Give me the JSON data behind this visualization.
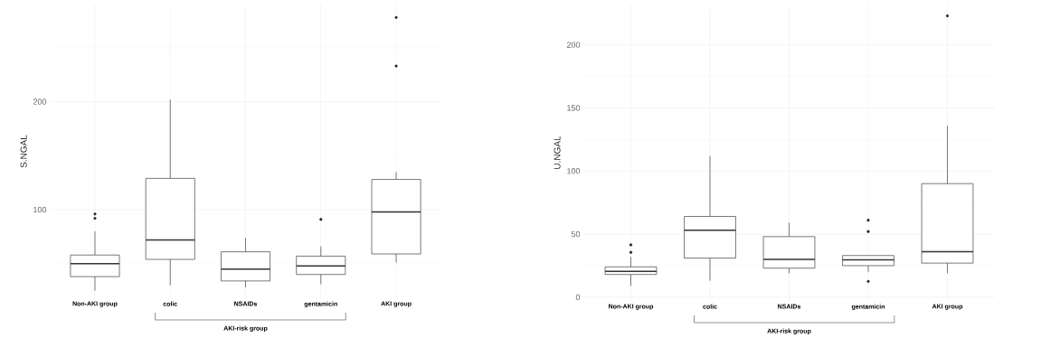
{
  "chart_data": [
    {
      "type": "box",
      "ylabel": "S.NGAL",
      "categories": [
        "Non-AKI group",
        "colic",
        "NSAIDs",
        "gentamicin",
        "AKI group"
      ],
      "boxes": [
        {
          "low": 25,
          "q1": 38,
          "median": 50,
          "q3": 58,
          "high": 80,
          "outliers": [
            92,
            96
          ]
        },
        {
          "low": 30,
          "q1": 54,
          "median": 72,
          "q3": 129,
          "high": 202
        },
        {
          "low": 28,
          "q1": 34,
          "median": 45,
          "q3": 61,
          "high": 74
        },
        {
          "low": 31,
          "q1": 40,
          "median": 48,
          "q3": 57,
          "high": 66,
          "outliers": [
            91
          ]
        },
        {
          "low": 51,
          "q1": 59,
          "median": 98,
          "q3": 128,
          "high": 135,
          "outliers": [
            233,
            278
          ]
        }
      ],
      "ylim": [
        18,
        290
      ],
      "yticks": [
        100,
        200
      ],
      "grid": true,
      "annotations": [
        "AKI-risk group"
      ]
    },
    {
      "type": "box",
      "ylabel": "U.NGAL",
      "categories": [
        "Non-AKI group",
        "colic",
        "NSAIDs",
        "gentamicin",
        "AKI group"
      ],
      "boxes": [
        {
          "low": 9,
          "q1": 18,
          "median": 20.5,
          "q3": 24,
          "high": 32,
          "outliers": [
            35.5,
            41.5
          ]
        },
        {
          "low": 13,
          "q1": 31,
          "median": 53,
          "q3": 64,
          "high": 112
        },
        {
          "low": 19,
          "q1": 23,
          "median": 30,
          "q3": 48,
          "high": 59
        },
        {
          "low": 20,
          "q1": 25,
          "median": 29.5,
          "q3": 33,
          "high": 33,
          "outliers": [
            12.5,
            52,
            61
          ]
        },
        {
          "low": 19,
          "q1": 27,
          "median": 36,
          "q3": 90,
          "high": 136,
          "outliers": [
            223
          ]
        }
      ],
      "ylim": [
        -3,
        232
      ],
      "yticks": [
        0,
        50,
        100,
        150,
        200
      ],
      "grid": true,
      "annotations": [
        "AKI-risk group"
      ]
    }
  ]
}
